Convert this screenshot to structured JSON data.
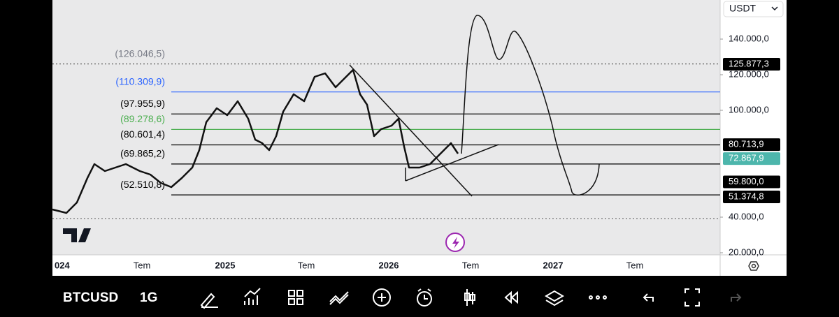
{
  "currency": "USDT",
  "price_axis": {
    "ticks": [
      {
        "value": 140000,
        "label": "140.000,0"
      },
      {
        "value": 120000,
        "label": "120.000,0"
      },
      {
        "value": 100000,
        "label": "100.000,0"
      },
      {
        "value": 40000,
        "label": "40.000,0"
      },
      {
        "value": 20000,
        "label": "20.000,0"
      }
    ]
  },
  "levels": [
    {
      "value": 126046.5,
      "label": "(126.046,5)",
      "color": "#787b86"
    },
    {
      "value": 110309.9,
      "label": "(110.309,9)",
      "color": "#2962ff"
    },
    {
      "value": 97955.9,
      "label": "(97.955,9)",
      "color": "#000000"
    },
    {
      "value": 89278.6,
      "label": "(89.278,6)",
      "color": "#4caf50"
    },
    {
      "value": 80601.4,
      "label": "(80.601,4)",
      "color": "#000000"
    },
    {
      "value": 69865.2,
      "label": "(69.865,2)",
      "color": "#000000"
    },
    {
      "value": 52510.8,
      "label": "(52.510,8)",
      "color": "#000000"
    }
  ],
  "price_labels": [
    {
      "value": 125877.3,
      "label": "125.877,3",
      "color": "#000000"
    },
    {
      "value": 80713.9,
      "label": "80.713,9",
      "color": "#000000"
    },
    {
      "value": 72867.9,
      "label": "72.867,9",
      "color": "#4db6ac"
    },
    {
      "value": 59800,
      "label": "59.800,0",
      "color": "#000000"
    },
    {
      "value": 51374.8,
      "label": "51.374,8",
      "color": "#000000"
    }
  ],
  "time_axis": [
    "024",
    "Tem",
    "2025",
    "Tem",
    "2026",
    "Tem",
    "2027",
    "Tem"
  ],
  "toolbar": {
    "symbol": "BTCUSD",
    "interval": "1G"
  }
}
